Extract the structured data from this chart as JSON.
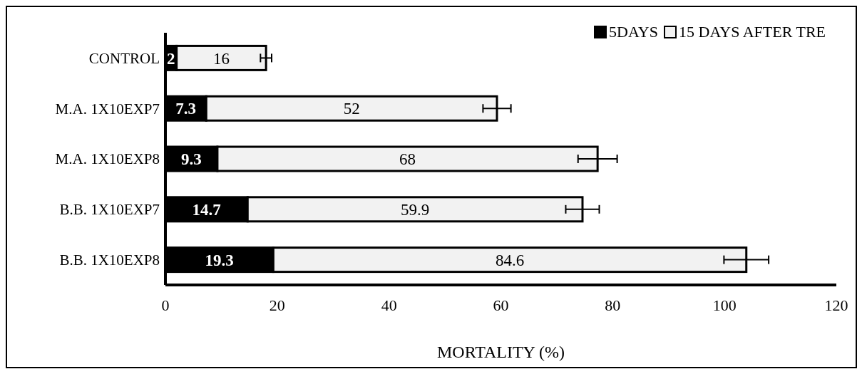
{
  "chart_data": {
    "type": "bar",
    "orientation": "horizontal",
    "stacked": true,
    "xlabel": "MORTALITY (%)",
    "categories": [
      "CONTROL",
      "M.A. 1X10EXP7",
      "M.A. 1X10EXP8",
      "B.B. 1X10EXP7",
      "B.B. 1X10EXP8"
    ],
    "series": [
      {
        "name": "5DAYS",
        "color": "#000000",
        "values": [
          2,
          7.3,
          9.3,
          14.7,
          19.3
        ],
        "errors": [
          0.5,
          0.5,
          0.5,
          0.5,
          0.5
        ]
      },
      {
        "name": "15 DAYS AFTER TRE",
        "color": "#f2f2f2",
        "values": [
          16,
          52,
          68,
          59.9,
          84.6
        ],
        "errors": [
          1,
          2.5,
          3.5,
          3,
          4
        ]
      }
    ],
    "xlim": [
      0,
      120
    ],
    "xticks": [
      0,
      20,
      40,
      60,
      80,
      100,
      120
    ],
    "data_labels": true,
    "legend": "top right"
  }
}
